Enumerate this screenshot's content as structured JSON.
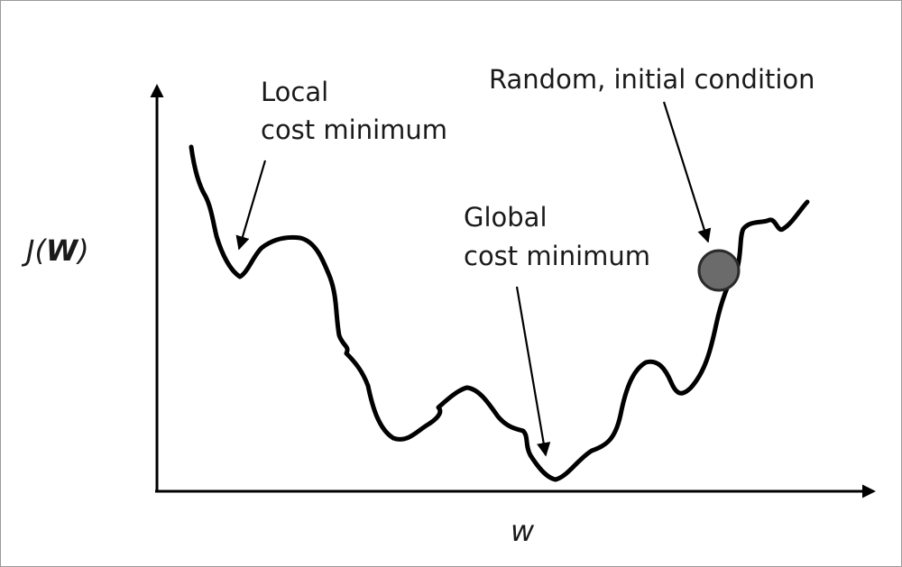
{
  "y_axis": {
    "label_prefix": "J(",
    "label_var": "W",
    "label_suffix": ")"
  },
  "x_axis": {
    "label": "w"
  },
  "annotations": {
    "local_min": {
      "line1": "Local",
      "line2": "cost minimum"
    },
    "global_min": {
      "line1": "Global",
      "line2": "cost minimum"
    },
    "initial": {
      "text": "Random, initial condition"
    }
  },
  "colors": {
    "curve": "#000000",
    "ball_fill": "#6b6b6b",
    "ball_stroke": "#2a2a2a",
    "frame": "#9a9a9a"
  }
}
